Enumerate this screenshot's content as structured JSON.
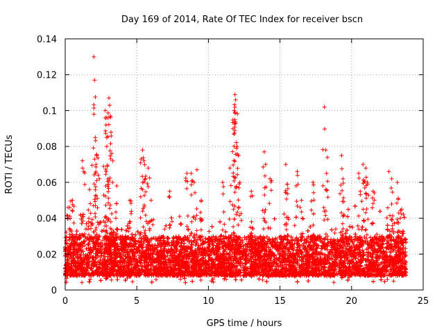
{
  "chart_data": {
    "type": "scatter",
    "title": "Day 169 of 2014, Rate Of TEC Index for receiver bscn",
    "xlabel": "GPS time / hours",
    "ylabel": "ROTI / TECUs",
    "xlim": [
      0,
      25
    ],
    "ylim": [
      0,
      0.14
    ],
    "x_ticks": [
      0,
      5,
      10,
      15,
      20,
      25
    ],
    "y_ticks": [
      0,
      0.02,
      0.04,
      0.06,
      0.08,
      0.1,
      0.12,
      0.14
    ],
    "y_tick_labels": [
      "0",
      "0.02",
      "0.04",
      "0.06",
      "0.08",
      "0.1",
      "0.12",
      "0.14"
    ],
    "grid": true,
    "marker": "+",
    "color": "#ff0000",
    "series": [
      {
        "name": "ROTI",
        "baseline_band": {
          "x_range": [
            0,
            23.8
          ],
          "y_range": [
            0.008,
            0.03
          ],
          "density_per_hour": 520
        },
        "spikes": [
          {
            "x": 0.2,
            "y": 0.046
          },
          {
            "x": 0.5,
            "y": 0.05
          },
          {
            "x": 1.2,
            "y": 0.072
          },
          {
            "x": 1.3,
            "y": 0.066
          },
          {
            "x": 1.7,
            "y": 0.056
          },
          {
            "x": 2.0,
            "y": 0.13
          },
          {
            "x": 2.05,
            "y": 0.117
          },
          {
            "x": 2.0,
            "y": 0.098
          },
          {
            "x": 2.1,
            "y": 0.085
          },
          {
            "x": 2.2,
            "y": 0.075
          },
          {
            "x": 2.3,
            "y": 0.064
          },
          {
            "x": 2.8,
            "y": 0.1
          },
          {
            "x": 2.85,
            "y": 0.092
          },
          {
            "x": 2.9,
            "y": 0.08
          },
          {
            "x": 2.95,
            "y": 0.069
          },
          {
            "x": 3.05,
            "y": 0.107
          },
          {
            "x": 3.1,
            "y": 0.103
          },
          {
            "x": 3.15,
            "y": 0.097
          },
          {
            "x": 3.2,
            "y": 0.088
          },
          {
            "x": 3.3,
            "y": 0.06
          },
          {
            "x": 3.6,
            "y": 0.058
          },
          {
            "x": 4.5,
            "y": 0.05
          },
          {
            "x": 5.3,
            "y": 0.073
          },
          {
            "x": 5.4,
            "y": 0.078
          },
          {
            "x": 5.5,
            "y": 0.072
          },
          {
            "x": 5.6,
            "y": 0.062
          },
          {
            "x": 5.8,
            "y": 0.068
          },
          {
            "x": 6.0,
            "y": 0.05
          },
          {
            "x": 7.3,
            "y": 0.055
          },
          {
            "x": 8.5,
            "y": 0.065
          },
          {
            "x": 8.8,
            "y": 0.065
          },
          {
            "x": 9.0,
            "y": 0.06
          },
          {
            "x": 9.2,
            "y": 0.067
          },
          {
            "x": 9.5,
            "y": 0.05
          },
          {
            "x": 11.0,
            "y": 0.06
          },
          {
            "x": 11.5,
            "y": 0.068
          },
          {
            "x": 11.85,
            "y": 0.109
          },
          {
            "x": 11.9,
            "y": 0.106
          },
          {
            "x": 11.8,
            "y": 0.1
          },
          {
            "x": 11.9,
            "y": 0.093
          },
          {
            "x": 11.85,
            "y": 0.089
          },
          {
            "x": 12.0,
            "y": 0.08
          },
          {
            "x": 12.1,
            "y": 0.075
          },
          {
            "x": 12.2,
            "y": 0.06
          },
          {
            "x": 13.0,
            "y": 0.055
          },
          {
            "x": 13.9,
            "y": 0.077
          },
          {
            "x": 14.0,
            "y": 0.07
          },
          {
            "x": 14.3,
            "y": 0.062
          },
          {
            "x": 15.4,
            "y": 0.07
          },
          {
            "x": 15.5,
            "y": 0.059
          },
          {
            "x": 16.2,
            "y": 0.066
          },
          {
            "x": 16.5,
            "y": 0.05
          },
          {
            "x": 17.3,
            "y": 0.06
          },
          {
            "x": 18.1,
            "y": 0.102
          },
          {
            "x": 18.2,
            "y": 0.078
          },
          {
            "x": 18.25,
            "y": 0.065
          },
          {
            "x": 19.3,
            "y": 0.075
          },
          {
            "x": 19.4,
            "y": 0.062
          },
          {
            "x": 20.5,
            "y": 0.065
          },
          {
            "x": 20.8,
            "y": 0.07
          },
          {
            "x": 21.0,
            "y": 0.068
          },
          {
            "x": 21.1,
            "y": 0.06
          },
          {
            "x": 21.5,
            "y": 0.055
          },
          {
            "x": 22.6,
            "y": 0.066
          },
          {
            "x": 22.8,
            "y": 0.062
          },
          {
            "x": 23.2,
            "y": 0.06
          },
          {
            "x": 23.5,
            "y": 0.045
          }
        ]
      }
    ]
  }
}
